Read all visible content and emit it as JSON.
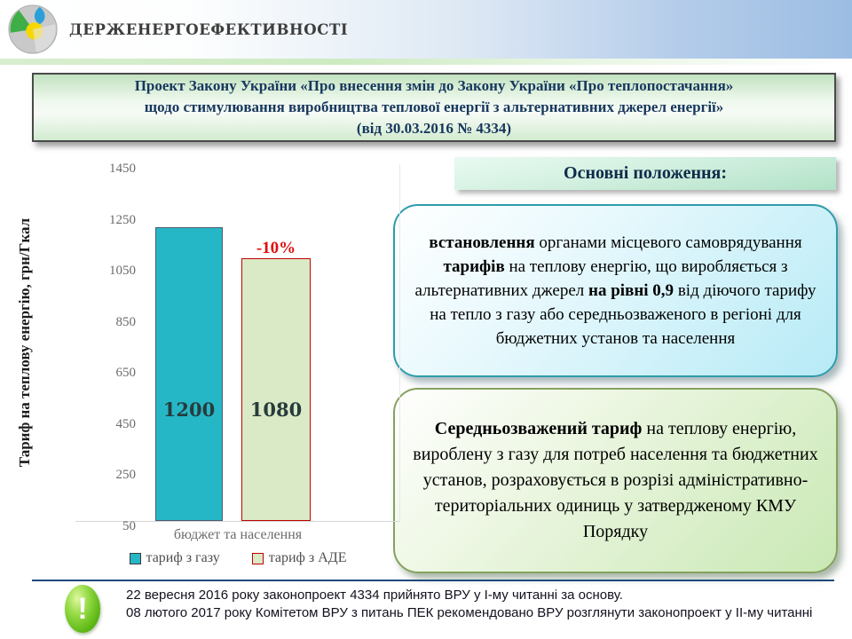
{
  "header": {
    "brand": "ДЕРЖЕНЕРГОЕФЕКТИВНОСТІ"
  },
  "title": {
    "lines": [
      "Проект  Закону України  «Про внесення змін  до Закону України  «Про теплопостачання»",
      "щодо стимулювання  виробництва  теплової  енергії з альтернативних  джерел енергії»",
      "(від 30.03.2016 № 4334)"
    ]
  },
  "headline": "Основні положення:",
  "boxes": {
    "blue": {
      "segments": [
        {
          "text": "встановлення",
          "bold": true
        },
        {
          "text": " органами місцевого самоврядування ",
          "bold": false
        },
        {
          "text": "тарифів",
          "bold": true
        },
        {
          "text": " на теплову енергію, що виробляється з альтернативних джерел ",
          "bold": false
        },
        {
          "text": "на рівні 0,9",
          "bold": true
        },
        {
          "text": " від діючого тарифу на тепло з газу або середньозваженого  в регіоні для бюджетних установ та населення",
          "bold": false
        }
      ]
    },
    "green": {
      "segments": [
        {
          "text": "Середньозважений тариф",
          "bold": true
        },
        {
          "text": " на теплову енергію, вироблену з газу для потреб населення та бюджетних установ, розраховується в розрізі адміністративно-територіальних одиниць у затвердженому КМУ Порядку",
          "bold": false
        }
      ]
    }
  },
  "chart_data": {
    "type": "bar",
    "title": "",
    "categories": [
      "бюджет та населення"
    ],
    "series": [
      {
        "name": "тариф з газу",
        "values": [
          1200
        ],
        "color": "#26b7c7"
      },
      {
        "name": "тариф з АДЕ",
        "values": [
          1080
        ],
        "color": "#dbeac6",
        "border": "#c00000"
      }
    ],
    "annotation": "-10%",
    "xlabel": "",
    "ylabel": "Тариф на теплову  енергію, грн/Гкал",
    "ylim": [
      50,
      1450
    ],
    "yticks": [
      1450,
      1250,
      1050,
      850,
      650,
      450,
      250,
      50
    ],
    "grid": false,
    "legend_position": "bottom"
  },
  "footer": {
    "icon_glyph": "!",
    "lines": [
      "22 вересня 2016 року законопроект  4334 прийнято ВРУ у І-му читанні за основу.",
      "08 лютого 2017 року  Комітетом ВРУ  з питань ПЕК рекомендовано ВРУ  розглянути законопроект  у ІІ-му читанні"
    ]
  }
}
